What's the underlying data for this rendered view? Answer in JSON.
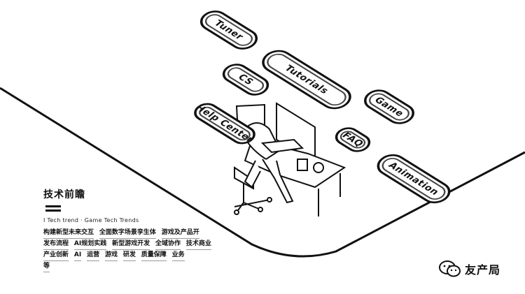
{
  "pills": [
    {
      "label": "Tuner"
    },
    {
      "label": "Tutorials"
    },
    {
      "label": "CS"
    },
    {
      "label": "Game"
    },
    {
      "label": "Help Center"
    },
    {
      "label": "FAQ"
    },
    {
      "label": "Animation"
    }
  ],
  "text_block": {
    "title": "技术前瞻",
    "subtitle": "I Tech trend · Game Tech Trends",
    "tag_lines": [
      [
        "构建新型未来交互",
        "全面数字场景孪生体",
        "游戏及产品开"
      ],
      [
        "发布流程",
        "AI规划实践",
        "新型游戏开发",
        "全域协作",
        "技术商业"
      ],
      [
        "产业创新",
        "AI",
        "运营",
        "游戏",
        "研发",
        "质量保障",
        "业务"
      ],
      [
        "等"
      ]
    ]
  },
  "brand": {
    "name": "友产局",
    "icon": "wechat-icon"
  },
  "colors": {
    "ink": "#111111",
    "background": "#ffffff"
  }
}
